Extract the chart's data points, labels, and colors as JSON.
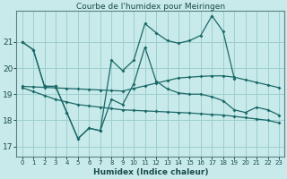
{
  "title": "Courbe de l'humidex pour Meiringen",
  "xlabel": "Humidex (Indice chaleur)",
  "background_color": "#c8eaea",
  "grid_color": "#9ecece",
  "line_color": "#1a6868",
  "x_ticks": [
    0,
    1,
    2,
    3,
    4,
    5,
    6,
    7,
    8,
    9,
    10,
    11,
    12,
    13,
    14,
    15,
    16,
    17,
    18,
    19,
    20,
    21,
    22,
    23
  ],
  "ylim": [
    16.6,
    22.2
  ],
  "yticks": [
    17,
    18,
    19,
    20,
    21
  ],
  "series": {
    "line1": [
      21.0,
      20.7,
      19.3,
      19.3,
      18.3,
      17.3,
      17.7,
      17.6,
      20.3,
      19.9,
      20.3,
      21.7,
      21.35,
      21.05,
      20.95,
      21.05,
      21.25,
      22.0,
      21.4,
      19.6,
      null,
      null,
      null,
      null
    ],
    "line2": [
      21.0,
      20.7,
      19.3,
      19.3,
      18.3,
      17.3,
      17.7,
      17.6,
      18.8,
      18.6,
      19.4,
      20.8,
      19.5,
      19.2,
      19.05,
      19.0,
      19.0,
      18.9,
      18.75,
      18.4,
      18.3,
      18.5,
      18.4,
      18.2
    ],
    "line3": [
      19.3,
      19.28,
      19.26,
      19.24,
      19.22,
      19.2,
      19.18,
      19.16,
      19.14,
      19.12,
      19.22,
      19.32,
      19.42,
      19.52,
      19.62,
      19.65,
      19.68,
      19.7,
      19.7,
      19.65,
      19.55,
      19.45,
      19.35,
      19.25
    ],
    "line4": [
      19.25,
      19.1,
      18.95,
      18.8,
      18.7,
      18.6,
      18.55,
      18.5,
      18.45,
      18.4,
      18.38,
      18.36,
      18.34,
      18.32,
      18.3,
      18.28,
      18.25,
      18.22,
      18.2,
      18.15,
      18.1,
      18.05,
      18.0,
      17.9
    ]
  }
}
